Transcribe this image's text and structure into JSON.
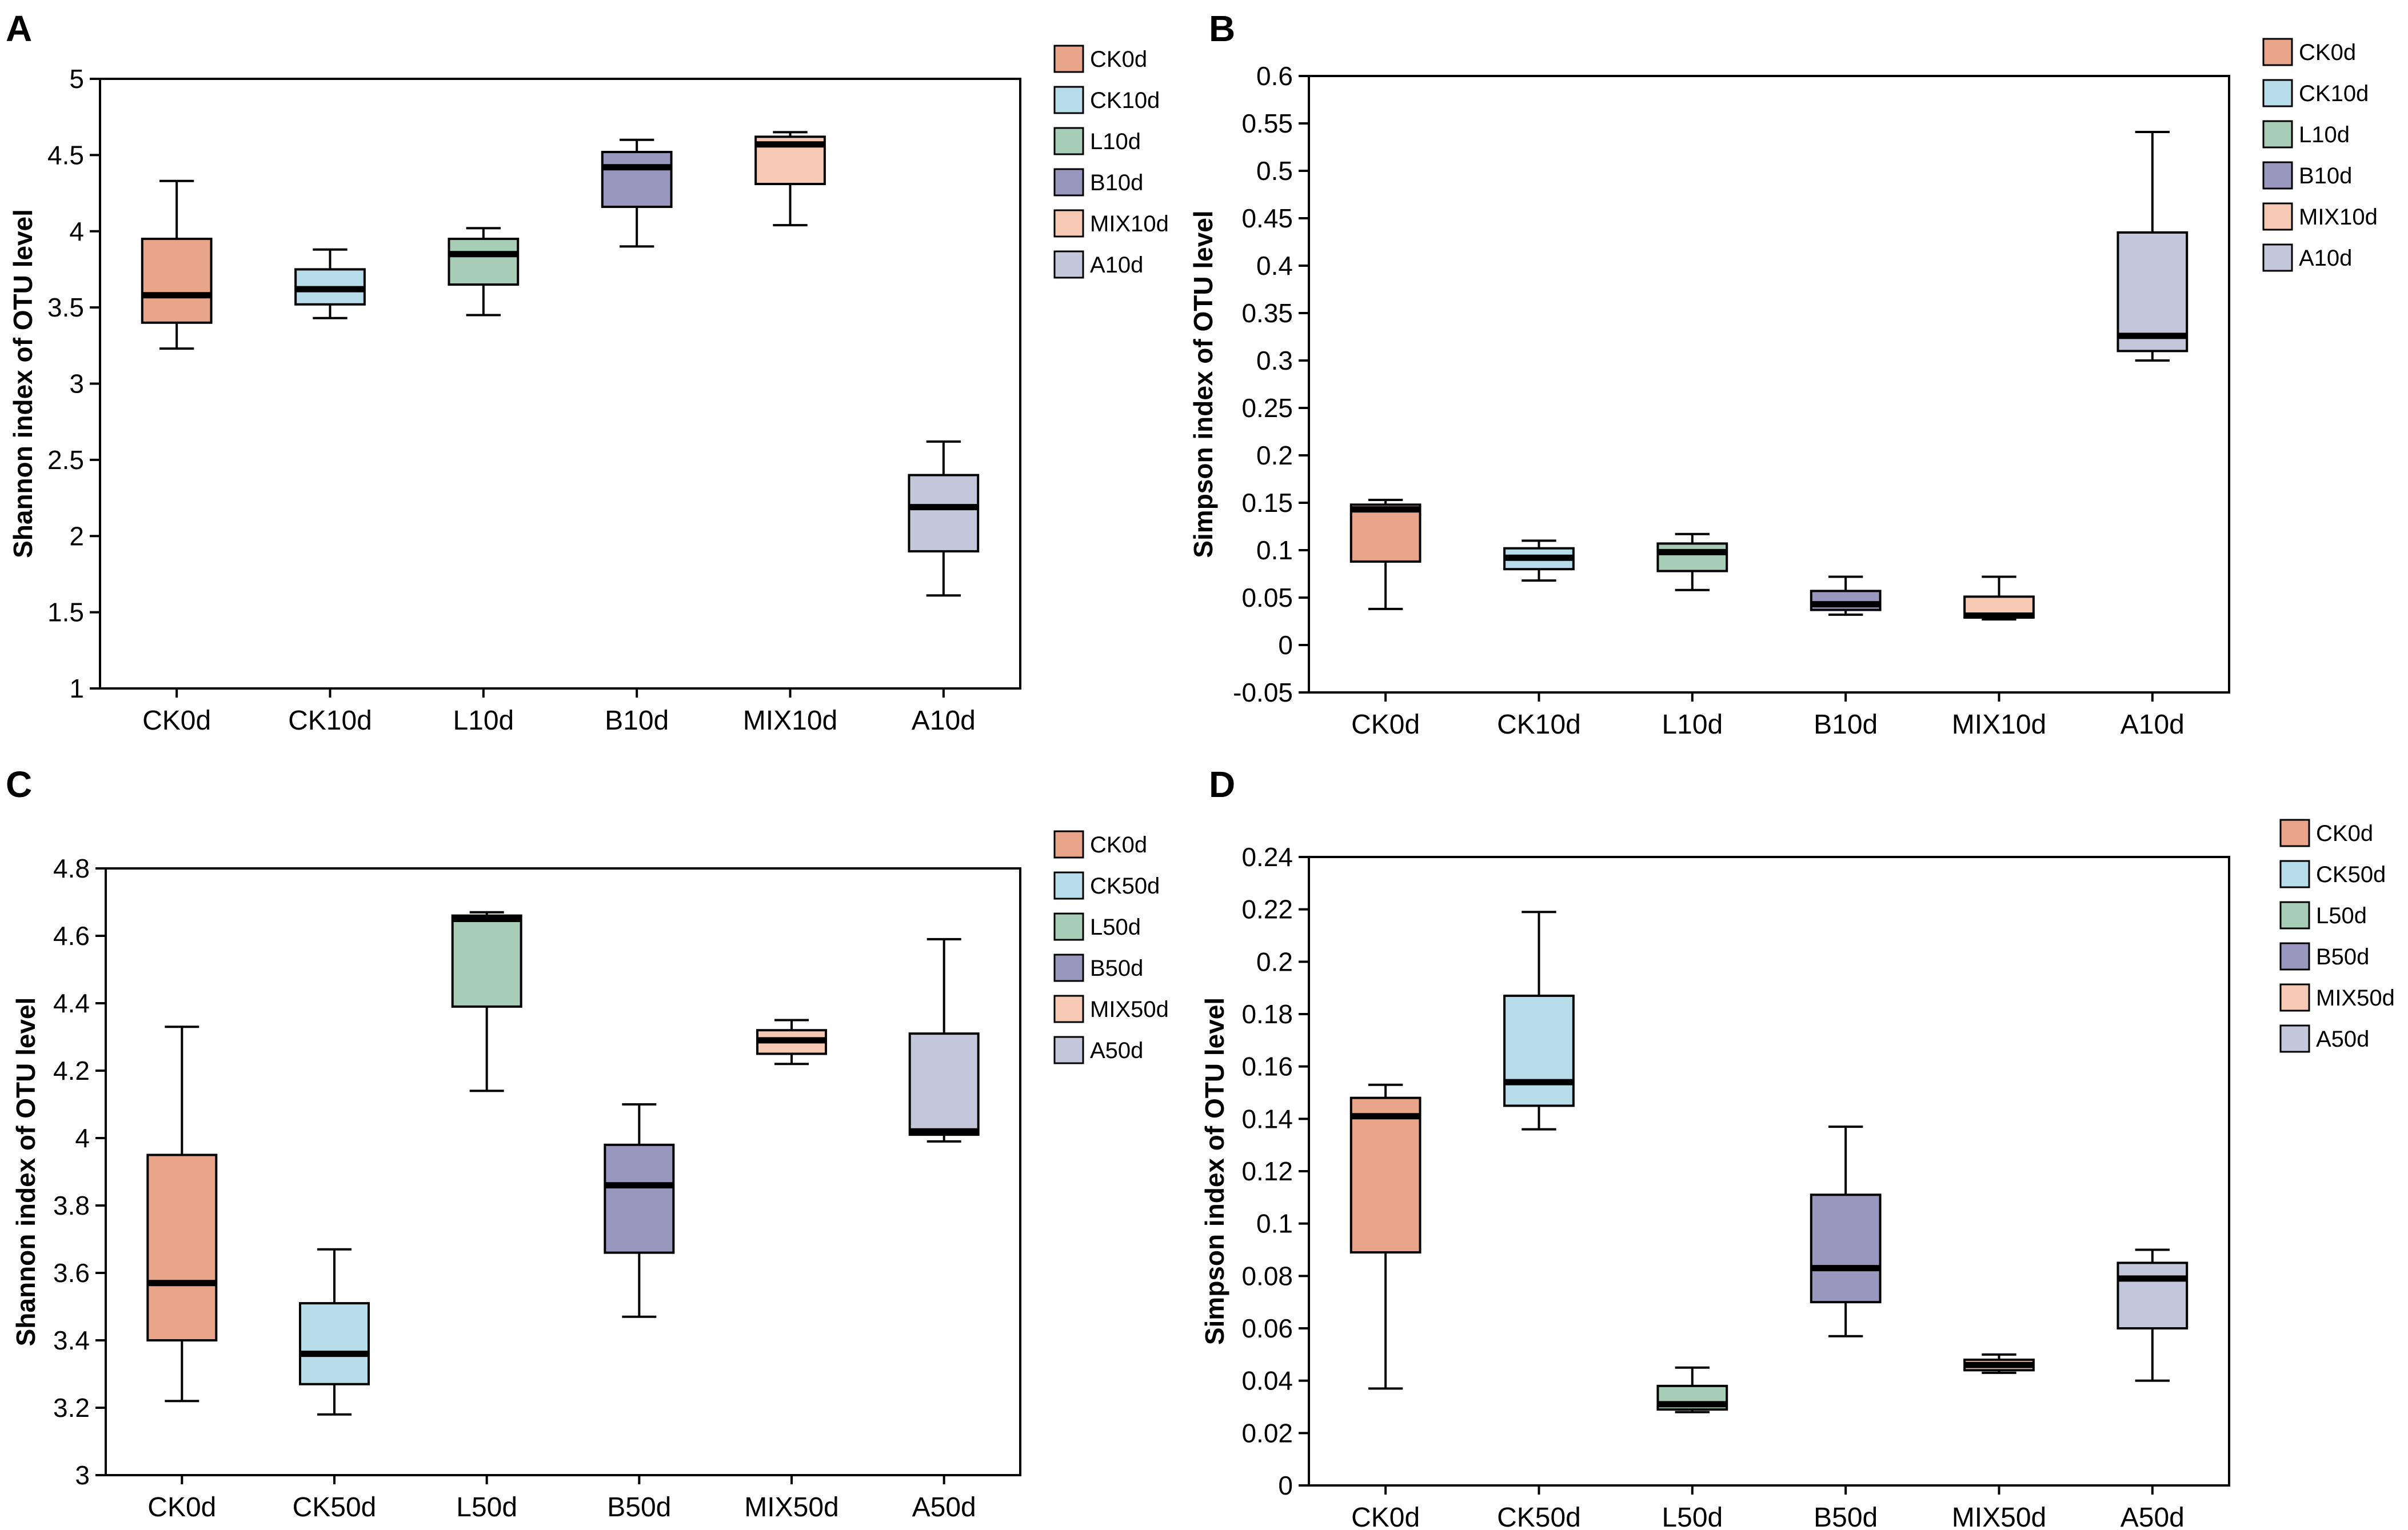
{
  "chart_data": [
    {
      "type": "boxplot",
      "panel": "A",
      "ylabel": "Shannon index of OTU level",
      "ylim": [
        1,
        5
      ],
      "yticks": [
        "1",
        "1.5",
        "2",
        "2.5",
        "3",
        "3.5",
        "4",
        "4.5",
        "5"
      ],
      "categories": [
        "CK0d",
        "CK10d",
        "L10d",
        "B10d",
        "MIX10d",
        "A10d"
      ],
      "legend": [
        "CK0d",
        "CK10d",
        "L10d",
        "B10d",
        "MIX10d",
        "A10d"
      ],
      "colors": [
        "#E8A58A",
        "#B7DDEA",
        "#A7CDB7",
        "#9A97BF",
        "#F6C9B5",
        "#C4C6DA"
      ],
      "boxes": [
        {
          "min": 3.23,
          "q1": 3.4,
          "median": 3.58,
          "q3": 3.95,
          "max": 4.33
        },
        {
          "min": 3.43,
          "q1": 3.52,
          "median": 3.62,
          "q3": 3.75,
          "max": 3.88
        },
        {
          "min": 3.45,
          "q1": 3.65,
          "median": 3.85,
          "q3": 3.95,
          "max": 4.02
        },
        {
          "min": 3.9,
          "q1": 4.16,
          "median": 4.42,
          "q3": 4.52,
          "max": 4.6
        },
        {
          "min": 4.04,
          "q1": 4.31,
          "median": 4.57,
          "q3": 4.62,
          "max": 4.65
        },
        {
          "min": 1.61,
          "q1": 1.9,
          "median": 2.19,
          "q3": 2.4,
          "max": 2.62
        }
      ]
    },
    {
      "type": "boxplot",
      "panel": "B",
      "ylabel": "Simpson index of OTU level",
      "ylim": [
        -0.05,
        0.6
      ],
      "yticks": [
        "-0.05",
        "0",
        "0.05",
        "0.1",
        "0.15",
        "0.2",
        "0.25",
        "0.3",
        "0.35",
        "0.4",
        "0.45",
        "0.5",
        "0.55",
        "0.6"
      ],
      "categories": [
        "CK0d",
        "CK10d",
        "L10d",
        "B10d",
        "MIX10d",
        "A10d"
      ],
      "legend": [
        "CK0d",
        "CK10d",
        "L10d",
        "B10d",
        "MIX10d",
        "A10d"
      ],
      "colors": [
        "#E8A58A",
        "#B7DDEA",
        "#A7CDB7",
        "#9A97BF",
        "#F6C9B5",
        "#C4C6DA"
      ],
      "boxes": [
        {
          "min": 0.038,
          "q1": 0.088,
          "median": 0.143,
          "q3": 0.148,
          "max": 0.153
        },
        {
          "min": 0.068,
          "q1": 0.08,
          "median": 0.092,
          "q3": 0.102,
          "max": 0.11
        },
        {
          "min": 0.058,
          "q1": 0.078,
          "median": 0.098,
          "q3": 0.107,
          "max": 0.117
        },
        {
          "min": 0.032,
          "q1": 0.037,
          "median": 0.043,
          "q3": 0.057,
          "max": 0.072
        },
        {
          "min": 0.027,
          "q1": 0.029,
          "median": 0.031,
          "q3": 0.051,
          "max": 0.072
        },
        {
          "min": 0.3,
          "q1": 0.31,
          "median": 0.326,
          "q3": 0.435,
          "max": 0.541
        }
      ]
    },
    {
      "type": "boxplot",
      "panel": "C",
      "ylabel": "Shannon index of OTU level",
      "ylim": [
        3,
        4.8
      ],
      "yticks": [
        "3",
        "3.2",
        "3.4",
        "3.6",
        "3.8",
        "4",
        "4.2",
        "4.4",
        "4.6",
        "4.8"
      ],
      "categories": [
        "CK0d",
        "CK50d",
        "L50d",
        "B50d",
        "MIX50d",
        "A50d"
      ],
      "legend": [
        "CK0d",
        "CK50d",
        "L50d",
        "B50d",
        "MIX50d",
        "A50d"
      ],
      "colors": [
        "#E8A58A",
        "#B7DDEA",
        "#A7CDB7",
        "#9A97BF",
        "#F6C9B5",
        "#C4C6DA"
      ],
      "boxes": [
        {
          "min": 3.22,
          "q1": 3.4,
          "median": 3.57,
          "q3": 3.95,
          "max": 4.33
        },
        {
          "min": 3.18,
          "q1": 3.27,
          "median": 3.36,
          "q3": 3.51,
          "max": 3.67
        },
        {
          "min": 4.14,
          "q1": 4.39,
          "median": 4.65,
          "q3": 4.66,
          "max": 4.67
        },
        {
          "min": 3.47,
          "q1": 3.66,
          "median": 3.86,
          "q3": 3.98,
          "max": 4.1
        },
        {
          "min": 4.22,
          "q1": 4.25,
          "median": 4.29,
          "q3": 4.32,
          "max": 4.35
        },
        {
          "min": 3.99,
          "q1": 4.01,
          "median": 4.02,
          "q3": 4.31,
          "max": 4.59
        }
      ]
    },
    {
      "type": "boxplot",
      "panel": "D",
      "ylabel": "Simpson index of OTU level",
      "ylim": [
        0,
        0.24
      ],
      "yticks": [
        "0",
        "0.02",
        "0.04",
        "0.06",
        "0.08",
        "0.1",
        "0.12",
        "0.14",
        "0.16",
        "0.18",
        "0.2",
        "0.22",
        "0.24"
      ],
      "categories": [
        "CK0d",
        "CK50d",
        "L50d",
        "B50d",
        "MIX50d",
        "A50d"
      ],
      "legend": [
        "CK0d",
        "CK50d",
        "L50d",
        "B50d",
        "MIX50d",
        "A50d"
      ],
      "colors": [
        "#E8A58A",
        "#B7DDEA",
        "#A7CDB7",
        "#9A97BF",
        "#F6C9B5",
        "#C4C6DA"
      ],
      "boxes": [
        {
          "min": 0.037,
          "q1": 0.089,
          "median": 0.141,
          "q3": 0.148,
          "max": 0.153
        },
        {
          "min": 0.136,
          "q1": 0.145,
          "median": 0.154,
          "q3": 0.187,
          "max": 0.219
        },
        {
          "min": 0.028,
          "q1": 0.029,
          "median": 0.031,
          "q3": 0.038,
          "max": 0.045
        },
        {
          "min": 0.057,
          "q1": 0.07,
          "median": 0.083,
          "q3": 0.111,
          "max": 0.137
        },
        {
          "min": 0.043,
          "q1": 0.044,
          "median": 0.046,
          "q3": 0.048,
          "max": 0.05
        },
        {
          "min": 0.04,
          "q1": 0.06,
          "median": 0.079,
          "q3": 0.085,
          "max": 0.09
        }
      ]
    }
  ]
}
